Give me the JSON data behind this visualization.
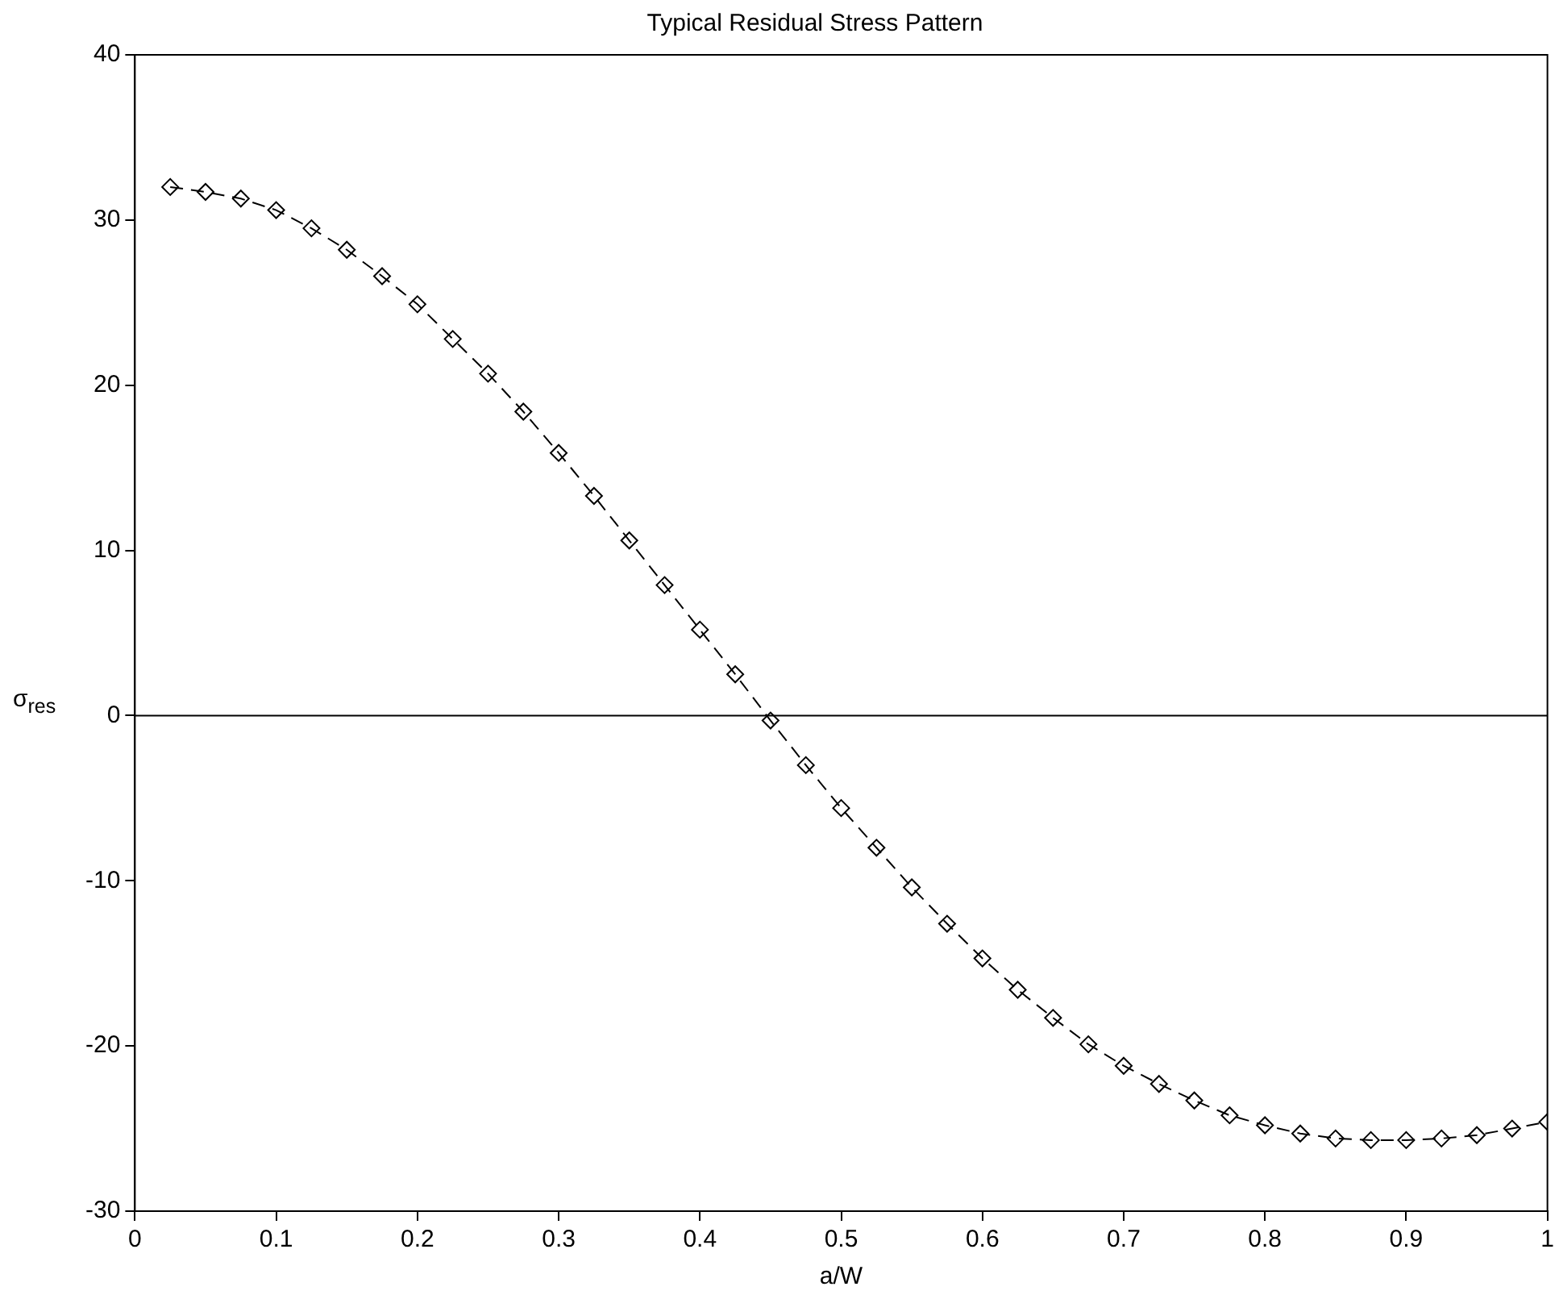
{
  "chart_data": {
    "type": "line",
    "title": "Typical Residual Stress Pattern",
    "xlabel": "a/W",
    "ylabel": "σ$_{res}$",
    "xlim": [
      0,
      1
    ],
    "xticks": [
      0,
      0.1,
      0.2,
      0.3,
      0.4,
      0.5,
      0.6,
      0.7,
      0.8,
      0.9,
      1
    ],
    "ylim": [
      -30,
      40
    ],
    "yticks": [
      -30,
      -20,
      -10,
      0,
      10,
      20,
      30,
      40
    ],
    "grid": false,
    "legend": false,
    "marker": "diamond",
    "line_style": "dashed",
    "ref_lines": [
      {
        "axis": "y",
        "value": 0,
        "color": "#000000"
      }
    ],
    "series": [
      {
        "color": "#000000",
        "x": [
          0.025,
          0.05,
          0.075,
          0.1,
          0.125,
          0.15,
          0.175,
          0.2,
          0.225,
          0.25,
          0.275,
          0.3,
          0.325,
          0.35,
          0.375,
          0.4,
          0.425,
          0.45,
          0.475,
          0.5,
          0.525,
          0.55,
          0.575,
          0.6,
          0.625,
          0.65,
          0.675,
          0.7,
          0.725,
          0.75,
          0.775,
          0.8,
          0.825,
          0.85,
          0.875,
          0.9,
          0.925,
          0.95,
          0.975,
          1.0
        ],
        "values": [
          32.0,
          31.7,
          31.3,
          30.6,
          29.5,
          28.2,
          26.6,
          24.9,
          22.8,
          20.7,
          18.4,
          15.9,
          13.3,
          10.6,
          7.9,
          5.2,
          2.5,
          -0.3,
          -3.0,
          -5.6,
          -8.0,
          -10.4,
          -12.6,
          -14.7,
          -16.6,
          -18.3,
          -19.9,
          -21.2,
          -22.3,
          -23.3,
          -24.2,
          -24.8,
          -25.3,
          -25.6,
          -25.7,
          -25.7,
          -25.6,
          -25.4,
          -25.0,
          -24.6
        ]
      }
    ]
  }
}
